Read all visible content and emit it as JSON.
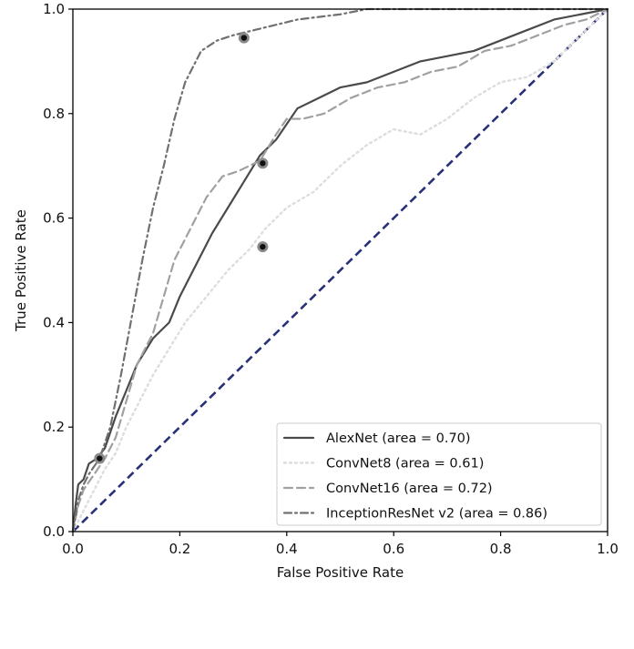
{
  "chart_data": {
    "type": "line",
    "title": "",
    "xlabel": "False Positive Rate",
    "ylabel": "True Positive Rate",
    "xlim": [
      0.0,
      1.0
    ],
    "ylim": [
      0.0,
      1.0
    ],
    "grid": false,
    "legend_position": "bottom-right",
    "x_ticks": [
      {
        "value": 0.0,
        "label": "0.0"
      },
      {
        "value": 0.2,
        "label": "0.2"
      },
      {
        "value": 0.4,
        "label": "0.4"
      },
      {
        "value": 0.6,
        "label": "0.6"
      },
      {
        "value": 0.8,
        "label": "0.8"
      },
      {
        "value": 1.0,
        "label": "1.0"
      }
    ],
    "y_ticks": [
      {
        "value": 0.0,
        "label": "0.0"
      },
      {
        "value": 0.2,
        "label": "0.2"
      },
      {
        "value": 0.4,
        "label": "0.4"
      },
      {
        "value": 0.6,
        "label": "0.6"
      },
      {
        "value": 0.8,
        "label": "0.8"
      },
      {
        "value": 1.0,
        "label": "1.0"
      }
    ],
    "diagonal": {
      "name": "chance",
      "x": [
        0.0,
        1.0
      ],
      "y": [
        0.0,
        1.0
      ],
      "color": "#283078",
      "dash": "dashed"
    },
    "series": [
      {
        "name": "AlexNet",
        "legend_label": "AlexNet (area = 0.70)",
        "color": "#4a4a4a",
        "dash": "solid",
        "x": [
          0.0,
          0.005,
          0.01,
          0.02,
          0.03,
          0.045,
          0.06,
          0.08,
          0.1,
          0.12,
          0.15,
          0.18,
          0.2,
          0.23,
          0.26,
          0.29,
          0.32,
          0.35,
          0.38,
          0.42,
          0.46,
          0.5,
          0.55,
          0.6,
          0.65,
          0.7,
          0.75,
          0.8,
          0.85,
          0.9,
          0.95,
          1.0
        ],
        "y": [
          0.0,
          0.05,
          0.09,
          0.1,
          0.13,
          0.14,
          0.16,
          0.22,
          0.27,
          0.32,
          0.37,
          0.4,
          0.45,
          0.51,
          0.57,
          0.62,
          0.67,
          0.72,
          0.75,
          0.81,
          0.83,
          0.85,
          0.86,
          0.88,
          0.9,
          0.91,
          0.92,
          0.94,
          0.96,
          0.98,
          0.99,
          1.0
        ]
      },
      {
        "name": "ConvNet8",
        "legend_label": "ConvNet8 (area = 0.61)",
        "color": "#dddddd",
        "dash": "dotted",
        "x": [
          0.0,
          0.02,
          0.04,
          0.06,
          0.08,
          0.1,
          0.12,
          0.15,
          0.18,
          0.21,
          0.25,
          0.29,
          0.33,
          0.36,
          0.4,
          0.45,
          0.5,
          0.55,
          0.6,
          0.65,
          0.7,
          0.75,
          0.8,
          0.85,
          0.9,
          0.95,
          1.0
        ],
        "y": [
          0.0,
          0.04,
          0.08,
          0.12,
          0.15,
          0.2,
          0.24,
          0.3,
          0.35,
          0.4,
          0.45,
          0.5,
          0.54,
          0.58,
          0.62,
          0.65,
          0.7,
          0.74,
          0.77,
          0.76,
          0.79,
          0.83,
          0.86,
          0.87,
          0.9,
          0.95,
          1.0
        ]
      },
      {
        "name": "ConvNet16",
        "legend_label": "ConvNet16 (area = 0.72)",
        "color": "#a0a0a0",
        "dash": "dashed",
        "x": [
          0.0,
          0.01,
          0.02,
          0.04,
          0.06,
          0.08,
          0.1,
          0.12,
          0.15,
          0.17,
          0.19,
          0.21,
          0.23,
          0.25,
          0.28,
          0.31,
          0.35,
          0.38,
          0.4,
          0.43,
          0.47,
          0.52,
          0.57,
          0.62,
          0.67,
          0.72,
          0.77,
          0.82,
          0.87,
          0.92,
          0.96,
          1.0
        ],
        "y": [
          0.0,
          0.05,
          0.08,
          0.11,
          0.14,
          0.18,
          0.25,
          0.32,
          0.38,
          0.45,
          0.52,
          0.56,
          0.6,
          0.64,
          0.68,
          0.69,
          0.71,
          0.76,
          0.79,
          0.79,
          0.8,
          0.83,
          0.85,
          0.86,
          0.88,
          0.89,
          0.92,
          0.93,
          0.95,
          0.97,
          0.98,
          1.0
        ]
      },
      {
        "name": "InceptionResNet v2",
        "legend_label": "InceptionResNet v2 (area = 0.86)",
        "color": "#707070",
        "dash": "dashdot",
        "x": [
          0.0,
          0.01,
          0.02,
          0.03,
          0.05,
          0.07,
          0.09,
          0.11,
          0.13,
          0.15,
          0.17,
          0.19,
          0.21,
          0.24,
          0.27,
          0.3,
          0.34,
          0.38,
          0.42,
          0.46,
          0.5,
          0.55,
          0.6,
          0.7,
          0.8,
          0.9,
          1.0
        ],
        "y": [
          0.0,
          0.06,
          0.09,
          0.11,
          0.14,
          0.2,
          0.3,
          0.41,
          0.52,
          0.62,
          0.7,
          0.79,
          0.86,
          0.92,
          0.94,
          0.95,
          0.96,
          0.97,
          0.98,
          0.985,
          0.99,
          1.0,
          1.0,
          1.0,
          1.0,
          1.0,
          1.0
        ]
      }
    ],
    "markers": [
      {
        "series": "InceptionResNet v2",
        "x": 0.32,
        "y": 0.945
      },
      {
        "series": "ConvNet16",
        "x": 0.355,
        "y": 0.705
      },
      {
        "series": "ConvNet8",
        "x": 0.355,
        "y": 0.545
      },
      {
        "series": "AlexNet",
        "x": 0.05,
        "y": 0.14
      }
    ]
  }
}
